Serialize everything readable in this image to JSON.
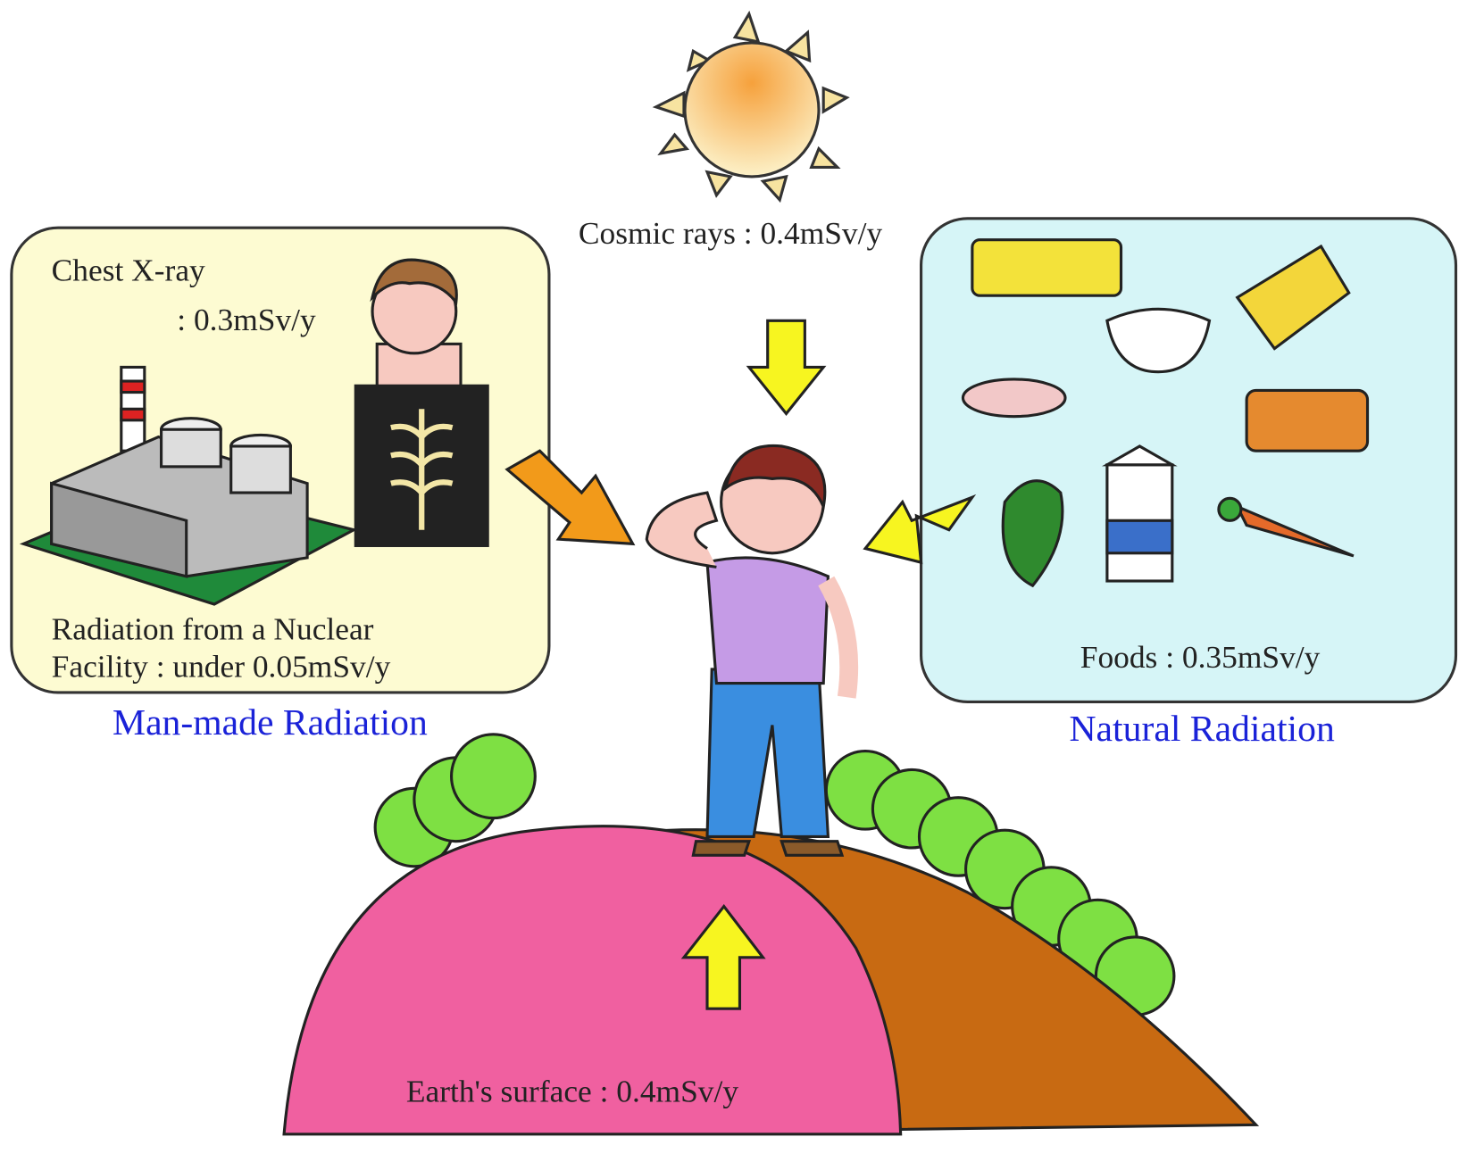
{
  "labels": {
    "cosmic_rays": "Cosmic rays : 0.4mSv/y",
    "chest_xray": [
      "Chest X-ray",
      ": 0.3mSv/y"
    ],
    "nuclear_facility": [
      "Radiation from a Nuclear",
      "Facility : under 0.05mSv/y"
    ],
    "man_made": "Man-made Radiation",
    "foods": "Foods : 0.35mSv/y",
    "natural": "Natural Radiation",
    "earth_surface": "Earth's surface : 0.4mSv/y"
  }
}
